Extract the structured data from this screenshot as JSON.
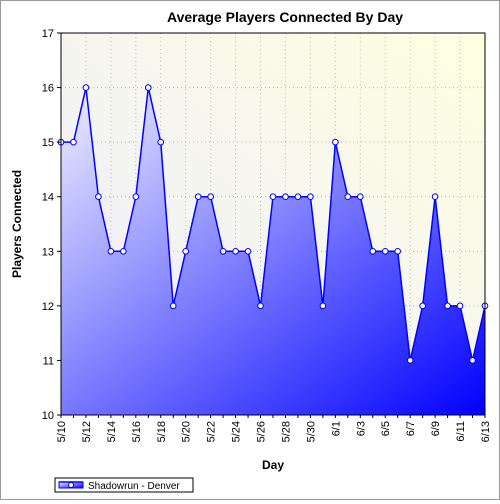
{
  "chart_data": {
    "type": "area",
    "title": "Average Players Connected By Day",
    "xlabel": "Day",
    "ylabel": "Players Connected",
    "ylim": [
      10,
      17
    ],
    "yticks": [
      10,
      11,
      12,
      13,
      14,
      15,
      16,
      17
    ],
    "x": [
      "5/10",
      "5/11",
      "5/12",
      "5/13",
      "5/14",
      "5/15",
      "5/16",
      "5/17",
      "5/18",
      "5/19",
      "5/20",
      "5/21",
      "5/22",
      "5/23",
      "5/24",
      "5/25",
      "5/26",
      "5/27",
      "5/28",
      "5/29",
      "5/30",
      "5/31",
      "6/1",
      "6/2",
      "6/3",
      "6/4",
      "6/5",
      "6/6",
      "6/7",
      "6/8",
      "6/9",
      "6/10",
      "6/11",
      "6/12",
      "6/13"
    ],
    "xtick_labels": [
      "5/10",
      "5/12",
      "5/14",
      "5/16",
      "5/18",
      "5/20",
      "5/22",
      "5/24",
      "5/26",
      "5/28",
      "5/30",
      "6/1",
      "6/3",
      "6/5",
      "6/7",
      "6/9",
      "6/11",
      "6/13"
    ],
    "series": [
      {
        "name": "Shadowrun - Denver",
        "values": [
          15,
          15,
          16,
          14,
          13,
          13,
          14,
          16,
          15,
          12,
          13,
          14,
          14,
          13,
          13,
          13,
          12,
          14,
          14,
          14,
          14,
          12,
          15,
          14,
          14,
          13,
          13,
          13,
          11,
          12,
          14,
          12,
          12,
          11,
          12
        ],
        "color": "#0000ff"
      }
    ],
    "grid": true,
    "legend": "bottom-left",
    "plot_background": "#ffffe0",
    "fill_gradient": [
      "#f0f0ff",
      "#0000ff"
    ]
  }
}
